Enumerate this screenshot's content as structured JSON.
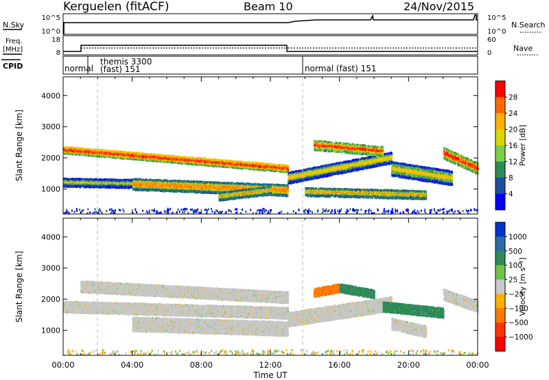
{
  "header": {
    "station": "Kerguelen (fitACF)",
    "beam": "Beam 10",
    "date": "24/Nov/2015"
  },
  "panels": {
    "nsky": {
      "left_label": "N.Sky",
      "right_label": "N.Search",
      "left_ticks": [
        "10^5",
        "10^0"
      ],
      "right_ticks": [
        "10^5",
        "10^0"
      ]
    },
    "freq": {
      "left_label_line1": "Freq.",
      "left_label_line2": "[MHz]",
      "right_label": "Nave",
      "left_ticks": [
        "18",
        "8"
      ],
      "right_ticks": [
        "60",
        "0"
      ]
    },
    "cpid": {
      "label": "CPID",
      "segments": [
        {
          "line1": "normal",
          "line2": ""
        },
        {
          "line1": "themis 3300",
          "line2": "(fast) 151"
        },
        {
          "line1": "normal (fast) 151",
          "line2": ""
        }
      ]
    }
  },
  "chart_data": [
    {
      "type": "heatmap",
      "quantity": "power",
      "ylabel": "Slant Range [km]",
      "xlabel": "Time UT",
      "y_ticks": [
        1000,
        2000,
        3000,
        4000
      ],
      "ylim": [
        200,
        4600
      ],
      "colorbar": {
        "label": "Power [dB]",
        "ticks": [
          "28",
          "24",
          "20",
          "16",
          "12",
          "8",
          "4"
        ],
        "colors": [
          "#ff0000",
          "#ff6a00",
          "#ffb000",
          "#d8d800",
          "#7ed04a",
          "#2e8b57",
          "#1f4fa0",
          "#0000ff"
        ]
      },
      "bands": [
        {
          "time_start": 0.0,
          "time_end": 13.0,
          "range_start": 2300,
          "range_end": 1700,
          "width_km": 220,
          "density": 0.85,
          "level": 1
        },
        {
          "time_start": 0.0,
          "time_end": 5.0,
          "range_start": 1250,
          "range_end": 1200,
          "width_km": 250,
          "density": 0.9,
          "level": 3
        },
        {
          "time_start": 4.0,
          "time_end": 13.0,
          "range_start": 1200,
          "range_end": 1000,
          "width_km": 350,
          "density": 0.85,
          "level": 2
        },
        {
          "time_start": 9.0,
          "time_end": 12.0,
          "range_start": 800,
          "range_end": 1000,
          "width_km": 250,
          "density": 0.75,
          "level": 2
        },
        {
          "time_start": 13.0,
          "time_end": 19.0,
          "range_start": 1400,
          "range_end": 2050,
          "width_km": 350,
          "density": 0.9,
          "level": 3
        },
        {
          "time_start": 19.0,
          "time_end": 22.5,
          "range_start": 1700,
          "range_end": 1400,
          "width_km": 450,
          "density": 0.9,
          "level": 3
        },
        {
          "time_start": 14.0,
          "time_end": 21.0,
          "range_start": 950,
          "range_end": 850,
          "width_km": 250,
          "density": 0.7,
          "level": 2
        },
        {
          "time_start": 14.5,
          "time_end": 18.5,
          "range_start": 2450,
          "range_end": 2250,
          "width_km": 300,
          "density": 0.55,
          "level": 1
        },
        {
          "time_start": 22.0,
          "time_end": 24.0,
          "range_start": 2200,
          "range_end": 1700,
          "width_km": 350,
          "density": 0.6,
          "level": 1
        }
      ]
    },
    {
      "type": "heatmap",
      "quantity": "velocity",
      "ylabel": "Slant Range [km]",
      "xlabel": "Time UT",
      "y_ticks": [
        1000,
        2000,
        3000,
        4000
      ],
      "ylim": [
        200,
        4600
      ],
      "colorbar": {
        "label": "Velocity [m s⁻¹]",
        "ticks": [
          "1000",
          "500",
          "100",
          "25",
          "−25",
          "−100",
          "−500",
          "−1000"
        ],
        "colors": [
          "#0033cc",
          "#2e6ba8",
          "#2e8b57",
          "#6fc24b",
          "#c8c8c8",
          "#ffb000",
          "#ff7a00",
          "#ff3300",
          "#ff0000"
        ]
      },
      "bands": [
        {
          "time_start": 1.0,
          "time_end": 13.0,
          "range_start": 2450,
          "range_end": 2100,
          "width_km": 350,
          "density": 0.9,
          "level": 4
        },
        {
          "time_start": 0.0,
          "time_end": 13.0,
          "range_start": 1800,
          "range_end": 1600,
          "width_km": 350,
          "density": 0.85,
          "level": 4
        },
        {
          "time_start": 4.0,
          "time_end": 13.0,
          "range_start": 1250,
          "range_end": 1100,
          "width_km": 450,
          "density": 0.85,
          "level": 4
        },
        {
          "time_start": 13.0,
          "time_end": 19.0,
          "range_start": 1400,
          "range_end": 1900,
          "width_km": 450,
          "density": 0.9,
          "level": 4
        },
        {
          "time_start": 14.5,
          "time_end": 16.0,
          "range_start": 2250,
          "range_end": 2400,
          "width_km": 250,
          "density": 0.8,
          "level": 6
        },
        {
          "time_start": 16.0,
          "time_end": 18.0,
          "range_start": 2400,
          "range_end": 2200,
          "width_km": 250,
          "density": 0.75,
          "level": 2
        },
        {
          "time_start": 18.5,
          "time_end": 22.0,
          "range_start": 1800,
          "range_end": 1600,
          "width_km": 300,
          "density": 0.85,
          "level": 2
        },
        {
          "time_start": 19.0,
          "time_end": 21.0,
          "range_start": 1250,
          "range_end": 1000,
          "width_km": 350,
          "density": 0.7,
          "level": 4
        },
        {
          "time_start": 22.0,
          "time_end": 24.0,
          "range_start": 2200,
          "range_end": 1800,
          "width_km": 350,
          "density": 0.6,
          "level": 4
        }
      ]
    }
  ],
  "time_axis": {
    "xlabel": "Time UT",
    "tick_labels": [
      "00:00",
      "04:00",
      "08:00",
      "12:00",
      "16:00",
      "20:00",
      "00:00"
    ],
    "xlim": [
      0,
      24
    ]
  }
}
